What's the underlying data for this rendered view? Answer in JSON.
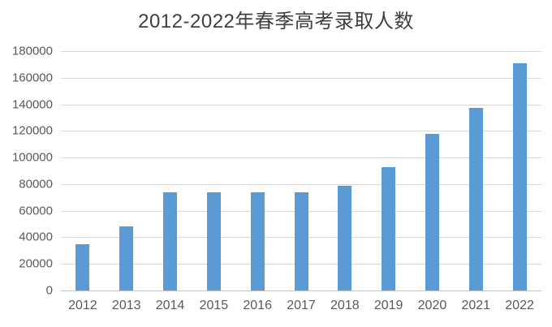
{
  "page": {
    "background": "#ffffff"
  },
  "chart_data": {
    "type": "bar",
    "title": "2012-2022年春季高考录取人数",
    "categories": [
      "2012",
      "2013",
      "2014",
      "2015",
      "2016",
      "2017",
      "2018",
      "2019",
      "2020",
      "2021",
      "2022"
    ],
    "values": [
      35000,
      48000,
      74000,
      74000,
      74000,
      74000,
      79000,
      93000,
      118000,
      137500,
      171000
    ],
    "xlabel": "",
    "ylabel": "",
    "ylim": [
      0,
      180000
    ],
    "yticks": [
      0,
      20000,
      40000,
      60000,
      80000,
      100000,
      120000,
      140000,
      160000,
      180000
    ],
    "grid": true,
    "legend": false,
    "bar_color": "#5B9BD5",
    "gridline_color": "#D9D9D9",
    "axis_line_color": "#C6C6C6",
    "tick_label_color": "#595959",
    "title_color": "#404040"
  }
}
